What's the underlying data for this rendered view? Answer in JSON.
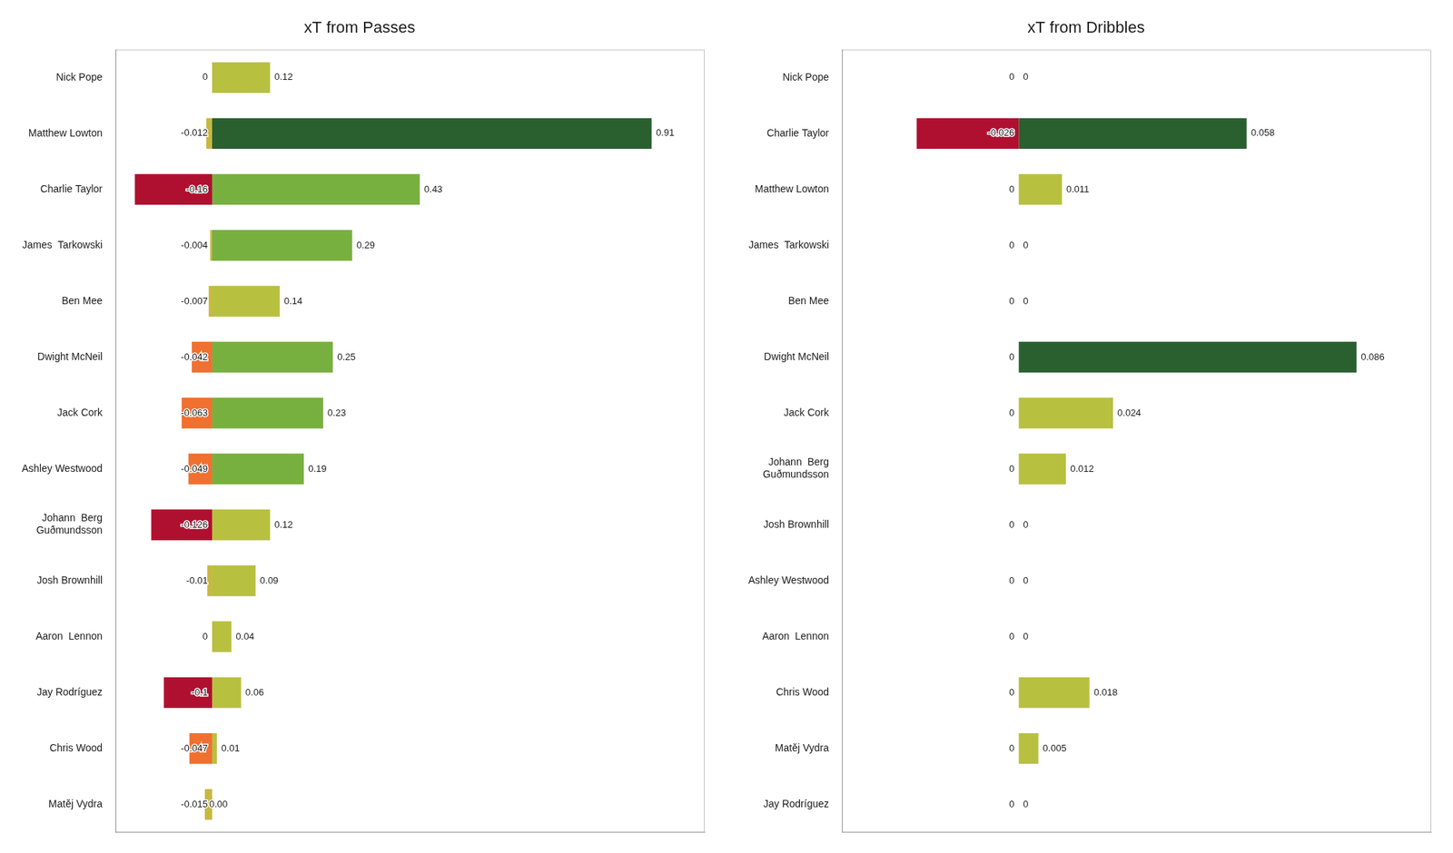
{
  "chart_data": [
    {
      "type": "bar",
      "orientation": "horizontal",
      "stacked": true,
      "title": "xT from Passes",
      "categories": [
        "Nick Pope",
        "Matthew Lowton",
        "Charlie Taylor",
        "James  Tarkowski",
        "Ben Mee",
        "Dwight McNeil",
        "Jack Cork",
        "Ashley Westwood",
        "Johann  Berg\nGuðmundsson",
        "Josh Brownhill",
        "Aaron  Lennon",
        "Jay Rodríguez",
        "Chris Wood",
        "Matěj Vydra"
      ],
      "series": [
        {
          "values": [
            0,
            -0.012,
            -0.16,
            -0.004,
            -0.007,
            -0.042,
            -0.063,
            -0.049,
            -0.126,
            -0.01,
            0,
            -0.1,
            -0.047,
            -0.015
          ],
          "value_labels": [
            "0",
            "-0.012",
            "-0.16",
            "-0.004",
            "-0.007",
            "-0.042",
            "-0.063",
            "-0.049",
            "-0.126",
            "-0.01",
            "0",
            "-0.1",
            "-0.047",
            "-0.015"
          ],
          "colors": [
            "#ffffff",
            "#c8b840",
            "#b01030",
            "#c8b840",
            "#c8b840",
            "#f07030",
            "#f07030",
            "#f07030",
            "#b01030",
            "#c8b840",
            "#ffffff",
            "#b01030",
            "#f07030",
            "#c8b840"
          ]
        },
        {
          "values": [
            0.12,
            0.91,
            0.43,
            0.29,
            0.14,
            0.25,
            0.23,
            0.19,
            0.12,
            0.09,
            0.04,
            0.06,
            0.01,
            0
          ],
          "value_labels": [
            "0.12",
            "0.91",
            "0.43",
            "0.29",
            "0.14",
            "0.25",
            "0.23",
            "0.19",
            "0.12",
            "0.09",
            "0.04",
            "0.06",
            "0.01",
            "0.00"
          ],
          "colors": [
            "#b8c040",
            "#2a6030",
            "#78b040",
            "#78b040",
            "#b8c040",
            "#78b040",
            "#78b040",
            "#78b040",
            "#b8c040",
            "#b8c040",
            "#b8c040",
            "#b8c040",
            "#b8c040",
            "#c8b840"
          ]
        }
      ],
      "xlim": [
        -0.2,
        1.02
      ],
      "grid": false,
      "data_labels": true,
      "tick_labels": "y"
    },
    {
      "type": "bar",
      "orientation": "horizontal",
      "stacked": true,
      "title": "xT from Dribbles",
      "categories": [
        "Nick Pope",
        "Charlie Taylor",
        "Matthew Lowton",
        "James  Tarkowski",
        "Ben Mee",
        "Dwight McNeil",
        "Jack Cork",
        "Johann  Berg\nGuðmundsson",
        "Josh Brownhill",
        "Ashley Westwood",
        "Aaron  Lennon",
        "Chris Wood",
        "Matěj Vydra",
        "Jay Rodríguez"
      ],
      "series": [
        {
          "values": [
            0,
            -0.026,
            0,
            0,
            0,
            0,
            0,
            0,
            0,
            0,
            0,
            0,
            0,
            0
          ],
          "value_labels": [
            "0",
            "-0.026",
            "0",
            "0",
            "0",
            "0",
            "0",
            "0",
            "0",
            "0",
            "0",
            "0",
            "0",
            "0"
          ],
          "colors": [
            "#ffffff",
            "#b01030",
            "#ffffff",
            "#ffffff",
            "#ffffff",
            "#ffffff",
            "#ffffff",
            "#ffffff",
            "#ffffff",
            "#ffffff",
            "#ffffff",
            "#ffffff",
            "#ffffff",
            "#ffffff"
          ]
        },
        {
          "values": [
            0,
            0.058,
            0.011,
            0,
            0,
            0.086,
            0.024,
            0.012,
            0,
            0,
            0,
            0.018,
            0.005,
            0
          ],
          "value_labels": [
            "0",
            "0.058",
            "0.011",
            "0",
            "0",
            "0.086",
            "0.024",
            "0.012",
            "0",
            "0",
            "0",
            "0.018",
            "0.005",
            "0"
          ],
          "colors": [
            "#ffffff",
            "#2a6030",
            "#b8c040",
            "#ffffff",
            "#ffffff",
            "#2a6030",
            "#b8c040",
            "#b8c040",
            "#ffffff",
            "#ffffff",
            "#ffffff",
            "#b8c040",
            "#b8c040",
            "#ffffff"
          ]
        }
      ],
      "xlim": [
        -0.045,
        0.105
      ],
      "grid": false,
      "data_labels": true,
      "tick_labels": "y"
    }
  ]
}
